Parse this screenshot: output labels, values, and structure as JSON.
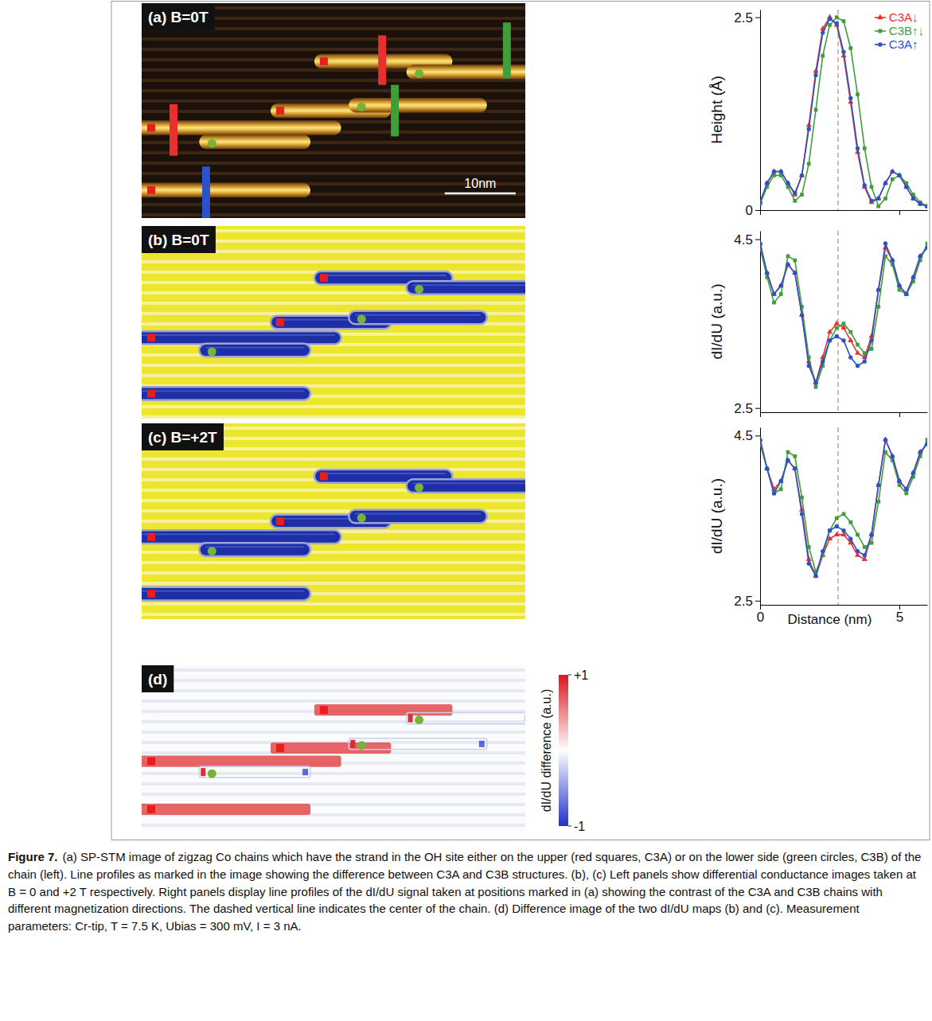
{
  "panels": [
    {
      "label": "(a) B=0T"
    },
    {
      "label": "(b) B=0T"
    },
    {
      "label": "(c) B=+2T"
    },
    {
      "label": "(d)"
    }
  ],
  "scale_bar": "10nm",
  "colorbar": {
    "label": "dI/dU difference (a.u.)",
    "range": [
      -1,
      1
    ],
    "ticks": [
      {
        "value": 1,
        "label": "+1"
      },
      -1
    ]
  },
  "chart_data": [
    {
      "type": "line",
      "y_label": "Height (Å)",
      "x": [
        0,
        0.25,
        0.5,
        0.75,
        1,
        1.25,
        1.5,
        1.75,
        2,
        2.25,
        2.5,
        2.75,
        3,
        3.25,
        3.5,
        3.75,
        4,
        4.25,
        4.5,
        4.75,
        5,
        5.25,
        5.5,
        5.75,
        6
      ],
      "xlim": [
        0,
        6
      ],
      "xticks": [
        0,
        5
      ],
      "ylim": [
        0,
        2.6
      ],
      "yticks": [
        0,
        2.5
      ],
      "tick_labels": "y",
      "vline": 2.8,
      "legend": "upper right",
      "series": [
        {
          "name": "C3A↓",
          "color": "#e8312f",
          "marker": "triangle",
          "values": [
            0.1,
            0.35,
            0.5,
            0.5,
            0.35,
            0.2,
            0.45,
            1.1,
            1.8,
            2.35,
            2.5,
            2.4,
            2.0,
            1.4,
            0.75,
            0.3,
            0.1,
            0.15,
            0.35,
            0.5,
            0.45,
            0.3,
            0.15,
            0.08,
            0.05
          ]
        },
        {
          "name": "C3B↑↓",
          "color": "#3f9e3a",
          "marker": "square",
          "values": [
            0.08,
            0.3,
            0.45,
            0.45,
            0.3,
            0.12,
            0.2,
            0.6,
            1.3,
            2.0,
            2.4,
            2.5,
            2.45,
            2.1,
            1.5,
            0.8,
            0.3,
            0.05,
            0.15,
            0.4,
            0.45,
            0.35,
            0.2,
            0.1,
            0.05
          ]
        },
        {
          "name": "C3A↑",
          "color": "#2a52c9",
          "marker": "circle",
          "values": [
            0.1,
            0.35,
            0.5,
            0.5,
            0.35,
            0.22,
            0.45,
            1.05,
            1.75,
            2.3,
            2.48,
            2.42,
            2.05,
            1.45,
            0.8,
            0.32,
            0.12,
            0.15,
            0.35,
            0.5,
            0.45,
            0.3,
            0.15,
            0.08,
            0.05
          ]
        }
      ]
    },
    {
      "type": "line",
      "y_label": "dI/dU (a.u.)",
      "x": [
        0,
        0.25,
        0.5,
        0.75,
        1,
        1.25,
        1.5,
        1.75,
        2,
        2.25,
        2.5,
        2.75,
        3,
        3.25,
        3.5,
        3.75,
        4,
        4.25,
        4.5,
        4.75,
        5,
        5.25,
        5.5,
        5.75,
        6
      ],
      "xlim": [
        0,
        6
      ],
      "xticks": [
        0,
        5
      ],
      "ylim": [
        2.45,
        4.6
      ],
      "yticks": [
        2.5,
        4.5
      ],
      "tick_labels": "y",
      "vline": 2.8,
      "series": [
        {
          "color": "#e8312f",
          "marker": "triangle",
          "values": [
            4.45,
            4.1,
            3.85,
            3.95,
            4.2,
            4.1,
            3.6,
            3.05,
            2.8,
            3.1,
            3.4,
            3.5,
            3.45,
            3.3,
            3.15,
            3.1,
            3.35,
            3.9,
            4.4,
            4.25,
            3.95,
            3.85,
            4.05,
            4.3,
            4.4
          ]
        },
        {
          "color": "#3f9e3a",
          "marker": "square",
          "values": [
            4.4,
            4.05,
            3.75,
            3.85,
            4.3,
            4.25,
            3.7,
            3.1,
            2.75,
            3.0,
            3.3,
            3.45,
            3.5,
            3.4,
            3.25,
            3.15,
            3.2,
            3.7,
            4.3,
            4.2,
            3.9,
            3.85,
            4.0,
            4.25,
            4.45
          ]
        },
        {
          "color": "#2a52c9",
          "marker": "circle",
          "values": [
            4.45,
            4.1,
            3.85,
            3.95,
            4.2,
            4.1,
            3.6,
            3.0,
            2.8,
            3.05,
            3.3,
            3.35,
            3.3,
            3.1,
            3.0,
            3.05,
            3.3,
            3.9,
            4.45,
            4.25,
            3.95,
            3.85,
            4.05,
            4.3,
            4.4
          ]
        }
      ]
    },
    {
      "type": "line",
      "y_label": "dI/dU (a.u.)",
      "x_label": "Distance (nm)",
      "x": [
        0,
        0.25,
        0.5,
        0.75,
        1,
        1.25,
        1.5,
        1.75,
        2,
        2.25,
        2.5,
        2.75,
        3,
        3.25,
        3.5,
        3.75,
        4,
        4.25,
        4.5,
        4.75,
        5,
        5.25,
        5.5,
        5.75,
        6
      ],
      "xlim": [
        0,
        6
      ],
      "xticks": [
        0,
        5
      ],
      "ylim": [
        2.45,
        4.6
      ],
      "yticks": [
        2.5,
        4.5
      ],
      "tick_labels": true,
      "vline": 2.8,
      "series": [
        {
          "color": "#e8312f",
          "marker": "triangle",
          "values": [
            4.45,
            4.1,
            3.85,
            3.95,
            4.2,
            4.1,
            3.6,
            3.0,
            2.8,
            3.05,
            3.25,
            3.3,
            3.3,
            3.2,
            3.05,
            3.0,
            3.3,
            3.9,
            4.45,
            4.25,
            3.95,
            3.85,
            4.05,
            4.3,
            4.4
          ]
        },
        {
          "color": "#3f9e3a",
          "marker": "square",
          "values": [
            4.4,
            4.1,
            3.8,
            3.85,
            4.3,
            4.25,
            3.75,
            3.15,
            2.85,
            3.05,
            3.35,
            3.5,
            3.55,
            3.45,
            3.3,
            3.15,
            3.2,
            3.7,
            4.3,
            4.2,
            3.9,
            3.8,
            4.0,
            4.25,
            4.45
          ]
        },
        {
          "color": "#2a52c9",
          "marker": "circle",
          "values": [
            4.45,
            4.1,
            3.8,
            3.95,
            4.2,
            4.1,
            3.55,
            2.95,
            2.8,
            3.1,
            3.35,
            3.4,
            3.35,
            3.25,
            3.1,
            3.05,
            3.3,
            3.9,
            4.45,
            4.25,
            3.95,
            3.85,
            4.05,
            4.3,
            4.4
          ]
        }
      ]
    }
  ],
  "caption": {
    "label": "Figure 7.",
    "text": "(a) SP-STM image of zigzag Co chains which have the strand in the OH site either on the upper (red squares, C3A) or on the lower side (green circles, C3B) of the chain (left). Line profiles as marked in the image showing the difference between C3A and C3B structures. (b), (c) Left panels show differential conductance images taken at B = 0 and +2 T respectively. Right panels display line profiles of the dI/dU signal taken at positions marked in (a) showing the contrast of the C3A and C3B chains with different magnetization directions. The dashed vertical line indicates the center of the chain. (d) Difference image of the two dI/dU maps (b) and (c). Measurement parameters: Cr-tip, T = 7.5 K, Ubias = 300 mV, I = 3 nA."
  }
}
